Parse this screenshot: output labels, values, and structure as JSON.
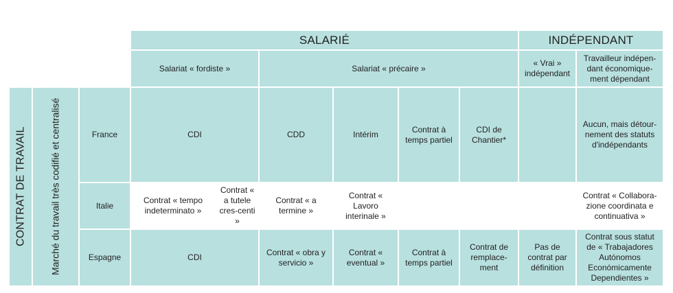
{
  "header": {
    "salarie": "SALARIÉ",
    "independant": "INDÉPENDANT",
    "fordiste": "Salariat « fordiste »",
    "precaire": "Salariat « précaire »",
    "vrai_independant": "« Vrai » indépendant",
    "travailleur_dependant": "Travailleur indépen-dant économique-ment dépendant"
  },
  "side": {
    "contrat_de_travail": "CONTRAT DE TRAVAIL",
    "marche": "Marché du travail très codifié et centralisé"
  },
  "rows": {
    "france": {
      "country": "France",
      "cdi": "CDI",
      "cdd": "CDD",
      "interim": "Intérim",
      "temps_partiel": "Contrat à temps partiel",
      "cdi_chantier": "CDI de Chantier*",
      "vrai": "",
      "dependant": "Aucun, mais détour-nement des statuts d'indépendants"
    },
    "italie": {
      "country": "Italie",
      "tempo": "Contrat « tempo indeterminato »",
      "tutele": "Contrat « a tutele cres-centi »",
      "termine": "Contrat « a termine »",
      "lavoro": "Contrat « Lavoro interinale »",
      "temps_partiel": "",
      "chantier": "",
      "vrai": "",
      "dependant": "Contrat « Collabora-zione coordinata e continuativa »"
    },
    "espagne": {
      "country": "Espagne",
      "cdi": "CDI",
      "obra": "Contrat « obra y servicio »",
      "eventual": "Contrat « eventual »",
      "temps_partiel": "Contrat à temps partiel",
      "remplacement": "Contrat de remplace-ment",
      "vrai": "Pas de contrat par définition",
      "dependant": "Contrat sous statut de « Trabajadores Autónomos Económicamente Dependientes »"
    }
  },
  "colors": {
    "teal": "#b8e0df",
    "white": "#ffffff"
  }
}
